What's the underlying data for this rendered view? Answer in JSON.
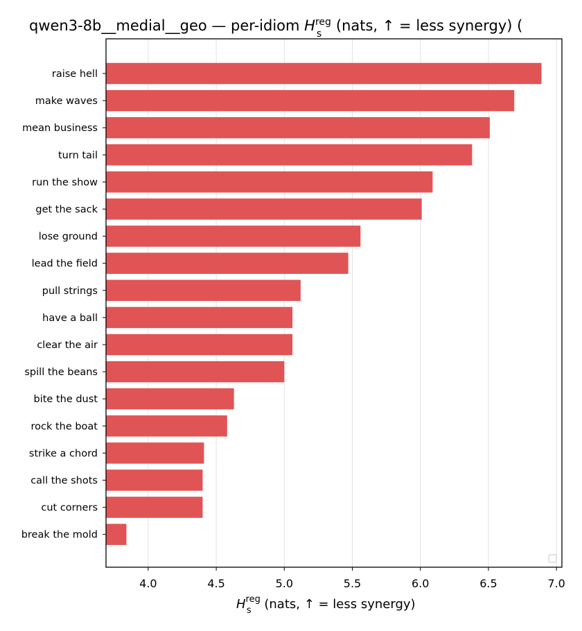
{
  "chart_data": {
    "type": "bar",
    "orientation": "horizontal",
    "title_main": "qwen3-8b__medial__geo — per-idiom ",
    "title_symbol": "H",
    "title_sub": "s",
    "title_sup": "reg",
    "title_tail": " (nats, ↑ = less synergy) (",
    "xlabel_symbol": "H",
    "xlabel_sub": "s",
    "xlabel_sup": "reg",
    "xlabel_tail": " (nats, ↑ = less synergy)",
    "ylabel": "",
    "xlim": [
      3.69,
      7.04
    ],
    "xticks": [
      "4.0",
      "4.5",
      "5.0",
      "5.5",
      "6.0",
      "6.5",
      "7.0"
    ],
    "grid": "x",
    "legend": "lower-right (empty)",
    "bar_color": "#e05455",
    "categories": [
      "raise hell",
      "make waves",
      "mean business",
      "turn tail",
      "run the show",
      "get the sack",
      "lose ground",
      "lead the field",
      "pull strings",
      "have a ball",
      "clear the air",
      "spill the beans",
      "bite the dust",
      "rock the boat",
      "strike a chord",
      "call the shots",
      "cut corners",
      "break the mold"
    ],
    "values": [
      6.89,
      6.69,
      6.51,
      6.38,
      6.09,
      6.01,
      5.56,
      5.47,
      5.12,
      5.06,
      5.06,
      5.0,
      4.63,
      4.58,
      4.41,
      4.4,
      4.4,
      3.84
    ]
  }
}
